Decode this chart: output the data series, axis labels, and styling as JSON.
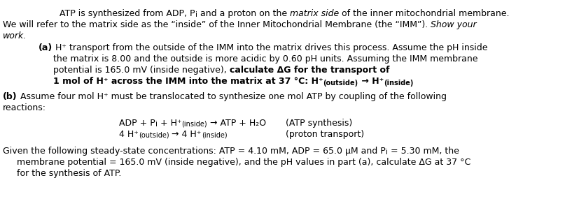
{
  "figsize": [
    8.17,
    3.18
  ],
  "dpi": 100,
  "background": "white",
  "font_family": "Arial",
  "base_fontsize": 9.0
}
